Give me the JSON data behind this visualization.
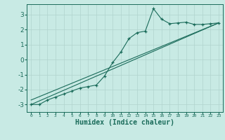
{
  "xlabel": "Humidex (Indice chaleur)",
  "x_ticks": [
    0,
    1,
    2,
    3,
    4,
    5,
    6,
    7,
    8,
    9,
    10,
    11,
    12,
    13,
    14,
    15,
    16,
    17,
    18,
    19,
    20,
    21,
    22,
    23
  ],
  "y_ticks": [
    -3,
    -2,
    -1,
    0,
    1,
    2,
    3
  ],
  "xlim": [
    -0.5,
    23.5
  ],
  "ylim": [
    -3.5,
    3.7
  ],
  "bg_color": "#c8eae4",
  "line_color": "#1a6b5a",
  "grid_color": "#b0d4ce",
  "zigzag_x": [
    0,
    1,
    2,
    3,
    4,
    5,
    6,
    7,
    8,
    9,
    10,
    11,
    12,
    13,
    14,
    15,
    16,
    17,
    18,
    19,
    20,
    21,
    22,
    23
  ],
  "zigzag_y": [
    -3.0,
    -3.0,
    -2.7,
    -2.5,
    -2.3,
    -2.1,
    -1.9,
    -1.8,
    -1.7,
    -1.1,
    -0.2,
    0.5,
    1.4,
    1.8,
    1.9,
    3.4,
    2.7,
    2.4,
    2.45,
    2.5,
    2.35,
    2.35,
    2.4,
    2.45
  ],
  "line1_x": [
    0,
    23
  ],
  "line1_y": [
    -3.0,
    2.45
  ],
  "line2_x": [
    0,
    23
  ],
  "line2_y": [
    -2.7,
    2.45
  ]
}
